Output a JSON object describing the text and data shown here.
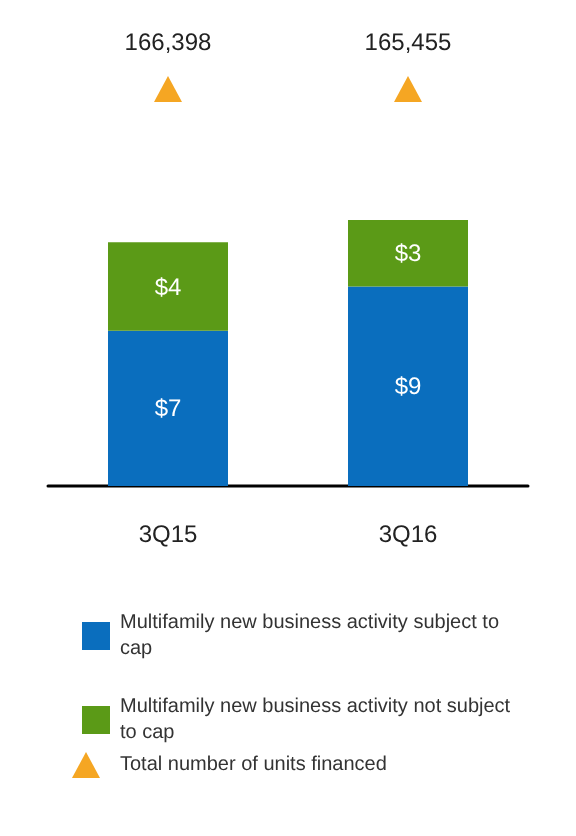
{
  "chart_data": {
    "type": "bar",
    "stacked": true,
    "categories": [
      "3Q15",
      "3Q16"
    ],
    "series": [
      {
        "name": "Multifamily new business activity subject to cap",
        "color": "#0a6ebe",
        "values": [
          7,
          9
        ],
        "value_labels": [
          "$7",
          "$9"
        ]
      },
      {
        "name": "Multifamily new business activity not subject to cap",
        "color": "#5b9a17",
        "values": [
          4,
          3
        ],
        "value_labels": [
          "$4",
          "$3"
        ]
      }
    ],
    "annotations": [
      "166,398",
      "165,455",
      "Total number of units financed"
    ],
    "tick_labels": "x",
    "legend": "bottom"
  }
}
